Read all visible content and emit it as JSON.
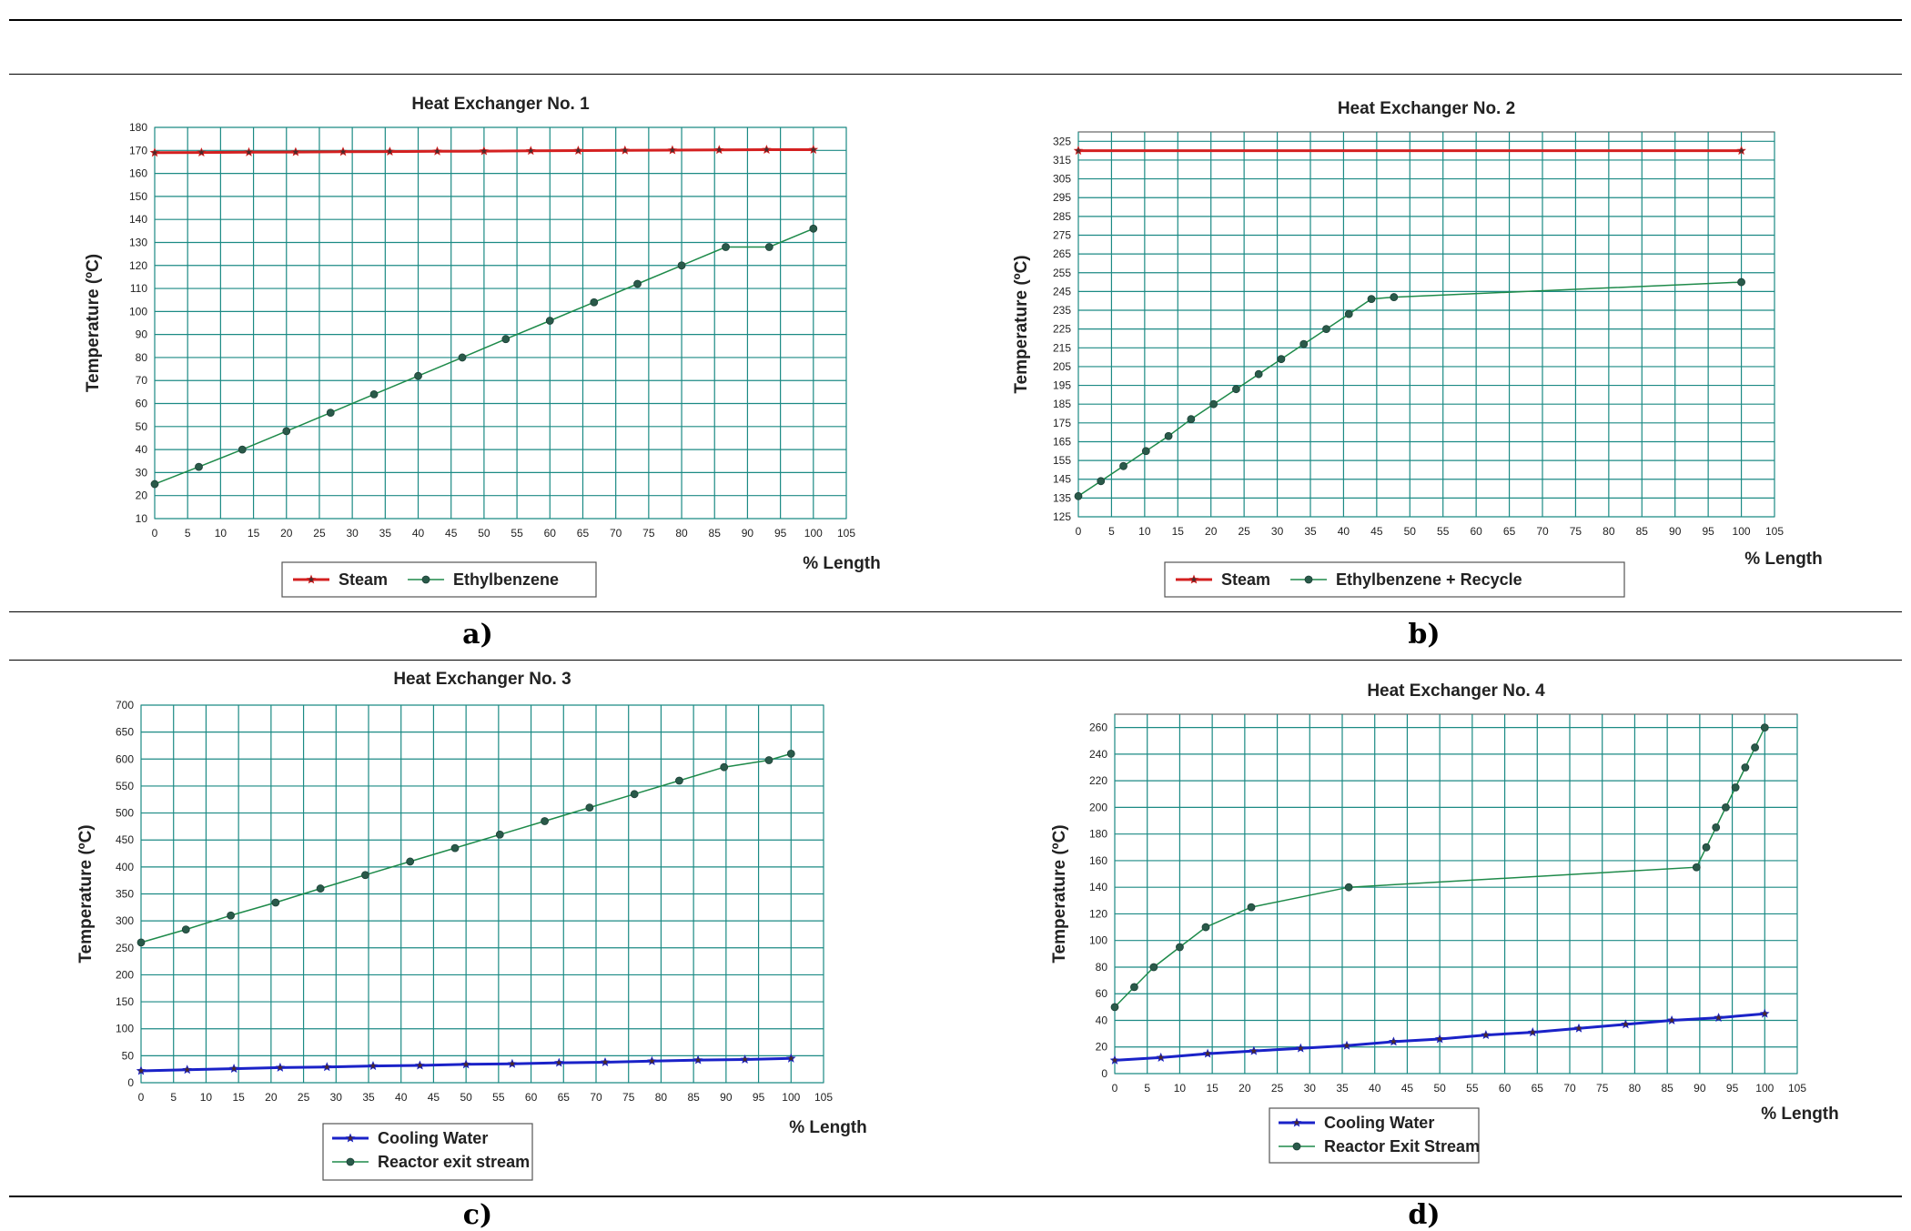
{
  "colors": {
    "grid": "#1b8a84",
    "steam": "#d42020",
    "green": "#1e8a4a",
    "blue": "#1a22c8",
    "marker": "#2a5a4a"
  },
  "chart_data": [
    {
      "type": "line",
      "label": "a)",
      "title": "Heat Exchanger No. 1",
      "xlabel": "% Length",
      "ylabel": "Temperature (ºC)",
      "xlim": [
        0,
        105
      ],
      "ylim": [
        10,
        180
      ],
      "xticks": [
        0,
        5,
        10,
        15,
        20,
        25,
        30,
        35,
        40,
        45,
        50,
        55,
        60,
        65,
        70,
        75,
        80,
        85,
        90,
        95,
        100,
        105
      ],
      "yticks": [
        10,
        20,
        30,
        40,
        50,
        60,
        70,
        80,
        90,
        100,
        110,
        120,
        130,
        140,
        150,
        160,
        170,
        180
      ],
      "series": [
        {
          "name": "Steam",
          "color": "#d42020",
          "marker": "star",
          "width": 3,
          "x": [
            0,
            7.1,
            14.3,
            21.4,
            28.6,
            35.7,
            42.9,
            50,
            57.1,
            64.3,
            71.4,
            78.6,
            85.7,
            92.9,
            100
          ],
          "y": [
            169,
            169.1,
            169.2,
            169.3,
            169.4,
            169.5,
            169.6,
            169.7,
            169.8,
            169.9,
            170,
            170.1,
            170.2,
            170.3,
            170.3
          ]
        },
        {
          "name": "Ethylbenzene",
          "color": "#1e8a4a",
          "marker": "dot",
          "width": 1.5,
          "x": [
            0,
            6.7,
            13.3,
            20,
            26.7,
            33.3,
            40,
            46.7,
            53.3,
            60,
            66.7,
            73.3,
            80,
            86.7,
            93.3,
            100
          ],
          "y": [
            25,
            32.5,
            40,
            48,
            56,
            64,
            72,
            80,
            88,
            96,
            104,
            112,
            120,
            128,
            128,
            136
          ]
        }
      ]
    },
    {
      "type": "line",
      "label": "b)",
      "title": "Heat Exchanger No. 2",
      "xlabel": "% Length",
      "ylabel": "Temperature (ºC)",
      "xlim": [
        0,
        105
      ],
      "ylim": [
        125,
        330
      ],
      "xticks": [
        0,
        5,
        10,
        15,
        20,
        25,
        30,
        35,
        40,
        45,
        50,
        55,
        60,
        65,
        70,
        75,
        80,
        85,
        90,
        95,
        100,
        105
      ],
      "yticks": [
        125,
        135,
        145,
        155,
        165,
        175,
        185,
        195,
        205,
        215,
        225,
        235,
        245,
        255,
        265,
        275,
        285,
        295,
        305,
        315,
        325
      ],
      "series": [
        {
          "name": "Steam",
          "color": "#d42020",
          "marker": "star",
          "width": 3,
          "x": [
            0,
            100
          ],
          "y": [
            320,
            320
          ]
        },
        {
          "name": "Ethylbenzene + Recycle",
          "color": "#1e8a4a",
          "marker": "dot",
          "width": 1.5,
          "x": [
            0,
            3.4,
            6.8,
            10.2,
            13.6,
            17,
            20.4,
            23.8,
            27.2,
            30.6,
            34,
            37.4,
            40.8,
            44.2,
            47.6,
            100
          ],
          "y": [
            136,
            144,
            152,
            160,
            168,
            177,
            185,
            193,
            201,
            209,
            217,
            225,
            233,
            241,
            242,
            250
          ]
        }
      ]
    },
    {
      "type": "line",
      "label": "c)",
      "title": "Heat Exchanger No. 3",
      "xlabel": "% Length",
      "ylabel": "Temperature (ºC)",
      "xlim": [
        0,
        105
      ],
      "ylim": [
        0,
        700
      ],
      "xticks": [
        0,
        5,
        10,
        15,
        20,
        25,
        30,
        35,
        40,
        45,
        50,
        55,
        60,
        65,
        70,
        75,
        80,
        85,
        90,
        95,
        100,
        105
      ],
      "yticks": [
        0,
        50,
        100,
        150,
        200,
        250,
        300,
        350,
        400,
        450,
        500,
        550,
        600,
        650,
        700
      ],
      "series": [
        {
          "name": "Cooling Water",
          "color": "#1a22c8",
          "marker": "star",
          "width": 3,
          "x": [
            0,
            7.1,
            14.3,
            21.4,
            28.6,
            35.7,
            42.9,
            50,
            57.1,
            64.3,
            71.4,
            78.6,
            85.7,
            92.9,
            100
          ],
          "y": [
            22,
            24,
            26,
            28,
            29,
            31,
            32,
            34,
            35,
            37,
            38,
            40,
            42,
            43,
            45
          ]
        },
        {
          "name": "Reactor exit stream",
          "color": "#1e8a4a",
          "marker": "dot",
          "width": 1.5,
          "x": [
            0,
            6.9,
            13.8,
            20.7,
            27.6,
            34.5,
            41.4,
            48.3,
            55.2,
            62.1,
            69,
            75.9,
            82.8,
            89.7,
            96.6,
            100
          ],
          "y": [
            260,
            284,
            310,
            334,
            360,
            385,
            410,
            435,
            460,
            485,
            510,
            535,
            560,
            585,
            598,
            610
          ]
        }
      ]
    },
    {
      "type": "line",
      "label": "d)",
      "title": "Heat Exchanger No. 4",
      "xlabel": "% Length",
      "ylabel": "Temperature (ºC)",
      "xlim": [
        0,
        105
      ],
      "ylim": [
        0,
        270
      ],
      "xticks": [
        0,
        5,
        10,
        15,
        20,
        25,
        30,
        35,
        40,
        45,
        50,
        55,
        60,
        65,
        70,
        75,
        80,
        85,
        90,
        95,
        100,
        105
      ],
      "yticks": [
        0,
        20,
        40,
        60,
        80,
        100,
        120,
        140,
        160,
        180,
        200,
        220,
        240,
        260
      ],
      "series": [
        {
          "name": "Cooling Water",
          "color": "#1a22c8",
          "marker": "star",
          "width": 3,
          "x": [
            0,
            7.1,
            14.3,
            21.4,
            28.6,
            35.7,
            42.9,
            50,
            57.1,
            64.3,
            71.4,
            78.6,
            85.7,
            92.9,
            100
          ],
          "y": [
            10,
            12,
            15,
            17,
            19,
            21,
            24,
            26,
            29,
            31,
            34,
            37,
            40,
            42,
            45
          ]
        },
        {
          "name": "Reactor Exit Stream",
          "color": "#1e8a4a",
          "marker": "dot",
          "width": 1.5,
          "x": [
            0,
            3,
            6,
            10,
            14,
            21,
            36,
            89.5,
            91,
            92.5,
            94,
            95.5,
            97,
            98.5,
            100
          ],
          "y": [
            50,
            65,
            80,
            95,
            110,
            125,
            140,
            155,
            170,
            185,
            200,
            215,
            230,
            245,
            260
          ]
        }
      ]
    }
  ]
}
